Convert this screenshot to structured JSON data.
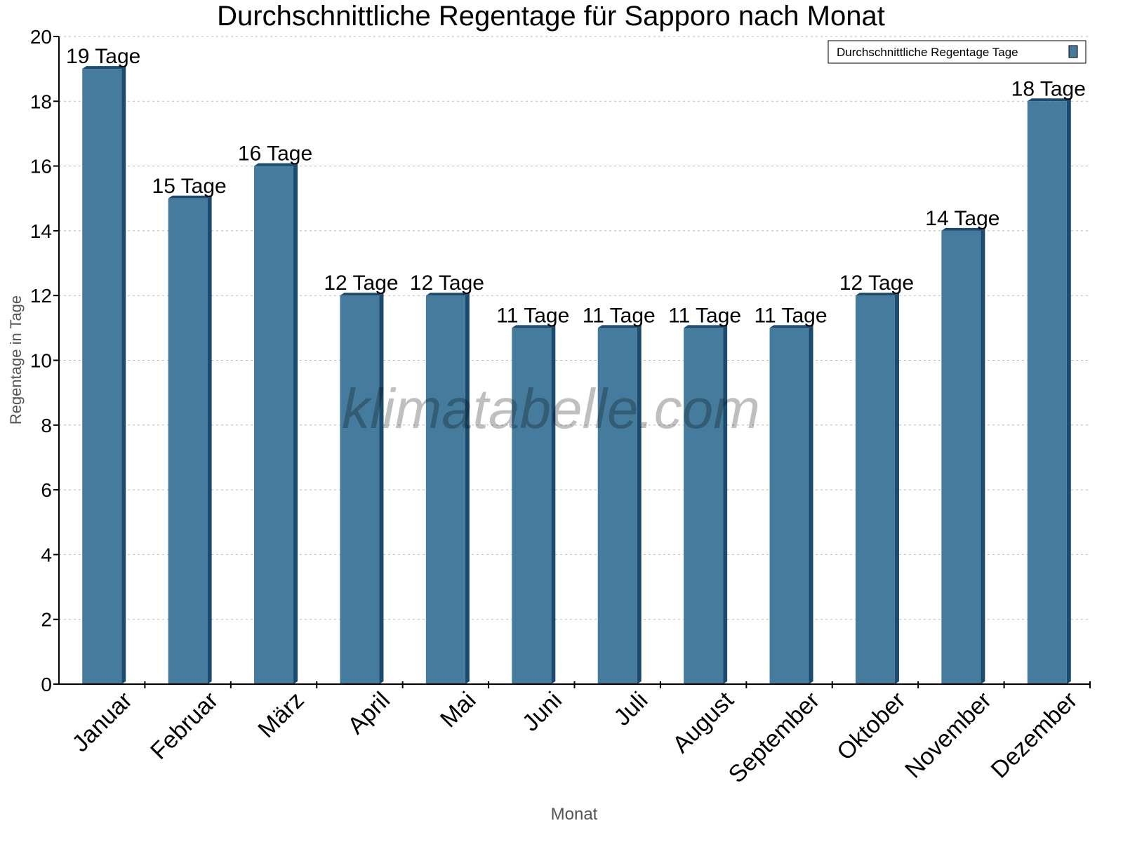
{
  "chart_data": {
    "type": "bar",
    "title": "Durchschnittliche Regentage für Sapporo nach Monat",
    "xlabel": "Monat",
    "ylabel": "Regentage in Tage",
    "ylim": [
      0,
      20
    ],
    "yticks": [
      0,
      2,
      4,
      6,
      8,
      10,
      12,
      14,
      16,
      18,
      20
    ],
    "grid": true,
    "legend_placement": "top-right",
    "categories": [
      "Januar",
      "Februar",
      "März",
      "April",
      "Mai",
      "Juni",
      "Juli",
      "August",
      "September",
      "Oktober",
      "November",
      "Dezember"
    ],
    "series": [
      {
        "name": "Durchschnittliche Regentage Tage",
        "values": [
          19,
          15,
          16,
          12,
          12,
          11,
          11,
          11,
          11,
          12,
          14,
          18
        ],
        "color": "#457b9d",
        "side_color": "#1a4a6e"
      }
    ],
    "label_suffix": " Tage",
    "watermark": "klimatabelle.com"
  }
}
